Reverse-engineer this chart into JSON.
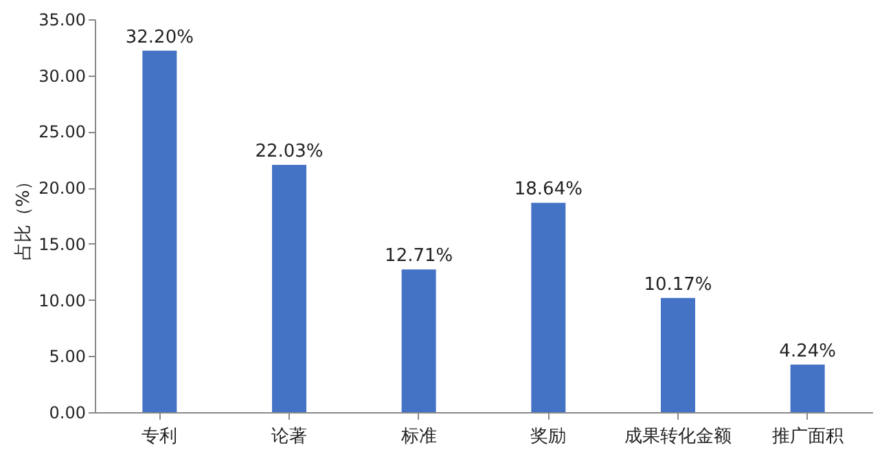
{
  "chart_data": {
    "type": "bar",
    "ylabel": "占比（%）",
    "categories": [
      "专利",
      "论著",
      "标准",
      "奖励",
      "成果转化金额",
      "推广面积"
    ],
    "values": [
      32.2,
      22.03,
      12.71,
      18.64,
      10.17,
      4.24
    ],
    "value_labels": [
      "32.20%",
      "22.03%",
      "12.71%",
      "18.64%",
      "10.17%",
      "4.24%"
    ],
    "color": "#4472c4",
    "ylim": [
      0,
      35
    ],
    "yticks": [
      {
        "value": 0,
        "label": "0.00"
      },
      {
        "value": 5,
        "label": "5.00"
      },
      {
        "value": 10,
        "label": "10.00"
      },
      {
        "value": 15,
        "label": "15.00"
      },
      {
        "value": 20,
        "label": "20.00"
      },
      {
        "value": 25,
        "label": "25.00"
      },
      {
        "value": 30,
        "label": "30.00"
      },
      {
        "value": 35,
        "label": "35.00"
      }
    ],
    "grid": false
  }
}
